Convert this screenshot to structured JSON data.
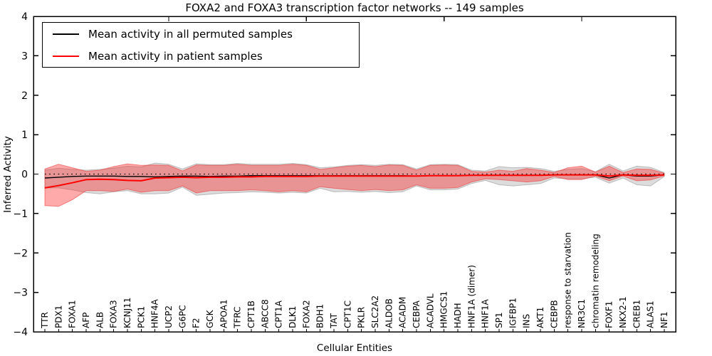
{
  "chart_data": {
    "type": "line",
    "title": "FOXA2 and FOXA3 transcription factor networks -- 149 samples",
    "xlabel": "Cellular Entities",
    "ylabel": "Inferred Activity",
    "ylim": [
      -4,
      4
    ],
    "ytick_labels": [
      "4",
      "3",
      "2",
      "1",
      "0",
      "−1",
      "−2",
      "−3",
      "−4"
    ],
    "grid": false,
    "legend_position": "upper left",
    "zero_reference_line": {
      "y": 0,
      "style": "dotted",
      "color": "#000000"
    },
    "x_major_tick_indices": [
      9,
      19,
      29,
      39
    ],
    "categories": [
      "TTR",
      "PDX1",
      "FOXA1",
      "AFP",
      "ALB",
      "FOXA3",
      "KCNJ11",
      "PCK1",
      "HNF4A",
      "UCP2",
      "G6PC",
      "F2",
      "GCK",
      "APOA1",
      "TFRC",
      "CPT1B",
      "ABCC8",
      "CPT1A",
      "DLK1",
      "FOXA2",
      "BDH1",
      "TAT",
      "CPT1C",
      "PKLR",
      "SLC2A2",
      "ALDOB",
      "ACADM",
      "CEBPA",
      "ACADVL",
      "HMGCS1",
      "HADH",
      "HNF1A (dimer)",
      "HNF1A",
      "SP1",
      "IGFBP1",
      "INS",
      "AKT1",
      "CEBPB",
      "response to starvation",
      "NR3C1",
      "chromatin remodeling",
      "FOXF1",
      "NKX2-1",
      "CREB1",
      "ALAS1",
      "NF1"
    ],
    "series": [
      {
        "name": "Mean activity in all permuted samples",
        "role": "permuted",
        "line_color": "#000000",
        "band_fill": "rgba(130,130,130,0.28)",
        "band_edge": "rgba(110,110,110,0.40)",
        "mean": [
          -0.1,
          -0.08,
          -0.06,
          -0.05,
          -0.05,
          -0.05,
          -0.06,
          -0.06,
          -0.07,
          -0.06,
          -0.05,
          -0.05,
          -0.06,
          -0.05,
          -0.05,
          -0.04,
          -0.04,
          -0.04,
          -0.04,
          -0.04,
          -0.04,
          -0.04,
          -0.04,
          -0.04,
          -0.04,
          -0.04,
          -0.04,
          -0.05,
          -0.04,
          -0.04,
          -0.04,
          -0.03,
          -0.03,
          -0.03,
          -0.03,
          -0.03,
          -0.03,
          -0.02,
          -0.02,
          -0.02,
          -0.02,
          -0.1,
          -0.02,
          -0.05,
          -0.05,
          -0.02
        ],
        "upper": [
          0.1,
          0.15,
          0.12,
          0.1,
          0.12,
          0.15,
          0.2,
          0.18,
          0.28,
          0.25,
          0.13,
          0.26,
          0.24,
          0.24,
          0.27,
          0.25,
          0.25,
          0.25,
          0.27,
          0.24,
          0.16,
          0.18,
          0.22,
          0.24,
          0.22,
          0.25,
          0.24,
          0.13,
          0.24,
          0.25,
          0.24,
          0.1,
          0.08,
          0.19,
          0.16,
          0.17,
          0.14,
          0.07,
          0.12,
          0.14,
          0.06,
          0.25,
          0.08,
          0.2,
          0.17,
          0.04
        ],
        "lower": [
          -0.35,
          -0.35,
          -0.4,
          -0.47,
          -0.5,
          -0.45,
          -0.42,
          -0.5,
          -0.5,
          -0.48,
          -0.33,
          -0.54,
          -0.51,
          -0.48,
          -0.47,
          -0.45,
          -0.46,
          -0.48,
          -0.46,
          -0.48,
          -0.36,
          -0.45,
          -0.44,
          -0.46,
          -0.44,
          -0.47,
          -0.45,
          -0.3,
          -0.4,
          -0.4,
          -0.38,
          -0.24,
          -0.16,
          -0.27,
          -0.3,
          -0.27,
          -0.24,
          -0.1,
          -0.12,
          -0.12,
          -0.08,
          -0.23,
          -0.1,
          -0.27,
          -0.3,
          -0.06
        ]
      },
      {
        "name": "Mean activity in patient samples",
        "role": "patient",
        "line_color": "#ff0000",
        "band_fill": "rgba(255,32,32,0.38)",
        "band_edge": "rgba(235,50,50,0.55)",
        "mean": [
          -0.35,
          -0.29,
          -0.22,
          -0.14,
          -0.13,
          -0.14,
          -0.16,
          -0.17,
          -0.1,
          -0.09,
          -0.08,
          -0.09,
          -0.08,
          -0.08,
          -0.07,
          -0.07,
          -0.06,
          -0.06,
          -0.06,
          -0.06,
          -0.05,
          -0.05,
          -0.05,
          -0.05,
          -0.05,
          -0.05,
          -0.05,
          -0.05,
          -0.04,
          -0.04,
          -0.04,
          -0.03,
          -0.03,
          -0.03,
          -0.03,
          -0.03,
          -0.03,
          -0.02,
          -0.02,
          -0.02,
          -0.02,
          -0.05,
          -0.02,
          -0.03,
          -0.03,
          -0.02
        ],
        "upper": [
          0.13,
          0.25,
          0.16,
          0.07,
          0.1,
          0.19,
          0.26,
          0.22,
          0.23,
          0.22,
          0.08,
          0.23,
          0.22,
          0.22,
          0.25,
          0.22,
          0.22,
          0.22,
          0.25,
          0.22,
          0.12,
          0.16,
          0.2,
          0.22,
          0.19,
          0.23,
          0.22,
          0.1,
          0.22,
          0.23,
          0.22,
          0.07,
          0.05,
          0.1,
          0.07,
          0.14,
          0.1,
          0.04,
          0.16,
          0.2,
          0.05,
          0.2,
          0.04,
          0.13,
          0.12,
          0.02
        ],
        "lower": [
          -0.8,
          -0.82,
          -0.65,
          -0.42,
          -0.42,
          -0.44,
          -0.38,
          -0.46,
          -0.42,
          -0.42,
          -0.3,
          -0.48,
          -0.42,
          -0.42,
          -0.42,
          -0.4,
          -0.42,
          -0.45,
          -0.42,
          -0.45,
          -0.32,
          -0.36,
          -0.39,
          -0.42,
          -0.39,
          -0.42,
          -0.4,
          -0.27,
          -0.36,
          -0.36,
          -0.34,
          -0.2,
          -0.12,
          -0.14,
          -0.17,
          -0.2,
          -0.17,
          -0.06,
          -0.14,
          -0.14,
          -0.05,
          -0.17,
          -0.05,
          -0.17,
          -0.15,
          -0.04
        ]
      }
    ]
  }
}
